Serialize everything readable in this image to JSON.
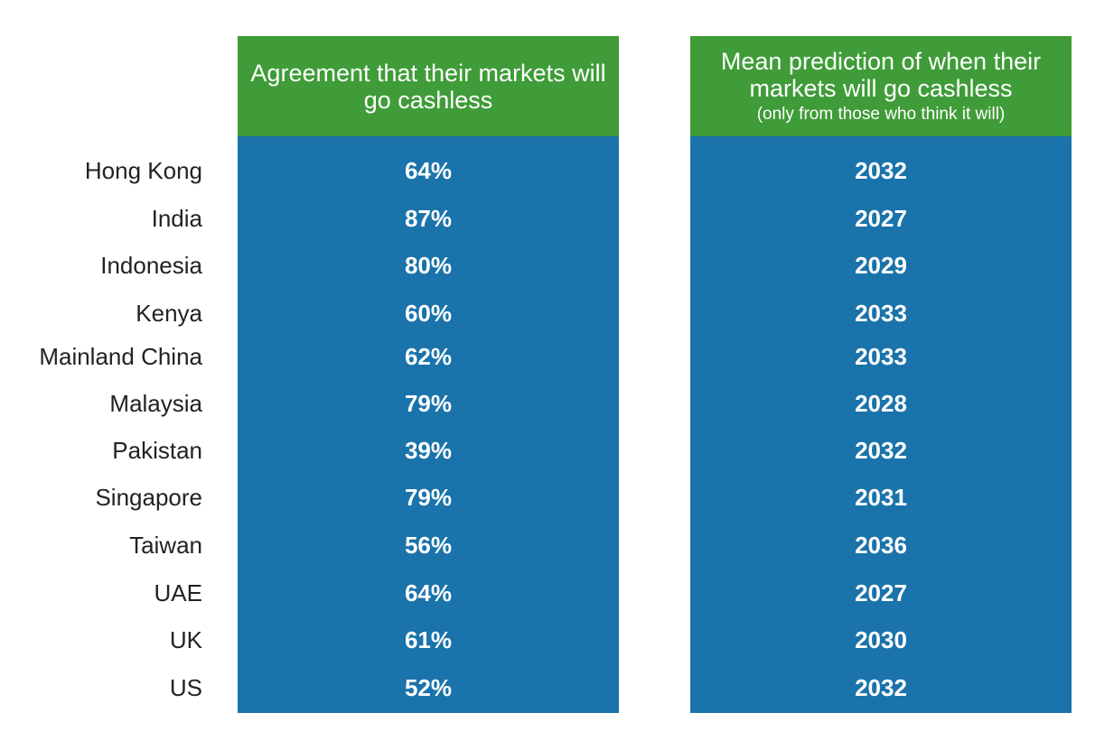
{
  "chart_data": {
    "type": "table",
    "columns": [
      {
        "header": "Agreement that their markets will go cashless",
        "subheader": ""
      },
      {
        "header": "Mean prediction of when their markets will go cashless",
        "subheader": "(only from those who think it will)"
      }
    ],
    "rows": [
      {
        "label": "Hong Kong",
        "agreement": "64%",
        "year": "2032"
      },
      {
        "label": "India",
        "agreement": "87%",
        "year": "2027"
      },
      {
        "label": "Indonesia",
        "agreement": "80%",
        "year": "2029"
      },
      {
        "label": "Kenya",
        "agreement": "60%",
        "year": "2033"
      },
      {
        "label": "Mainland China",
        "agreement": "62%",
        "year": "2033"
      },
      {
        "label": "Malaysia",
        "agreement": "79%",
        "year": "2028"
      },
      {
        "label": "Pakistan",
        "agreement": "39%",
        "year": "2032"
      },
      {
        "label": "Singapore",
        "agreement": "79%",
        "year": "2031"
      },
      {
        "label": "Taiwan",
        "agreement": "56%",
        "year": "2036"
      },
      {
        "label": "UAE",
        "agreement": "64%",
        "year": "2027"
      },
      {
        "label": "UK",
        "agreement": "61%",
        "year": "2030"
      },
      {
        "label": "US",
        "agreement": "52%",
        "year": "2032"
      }
    ],
    "colors": {
      "header": "#3f9c38",
      "body": "#1a73aa",
      "cell_text": "#ffffff",
      "label_text": "#222222"
    }
  }
}
